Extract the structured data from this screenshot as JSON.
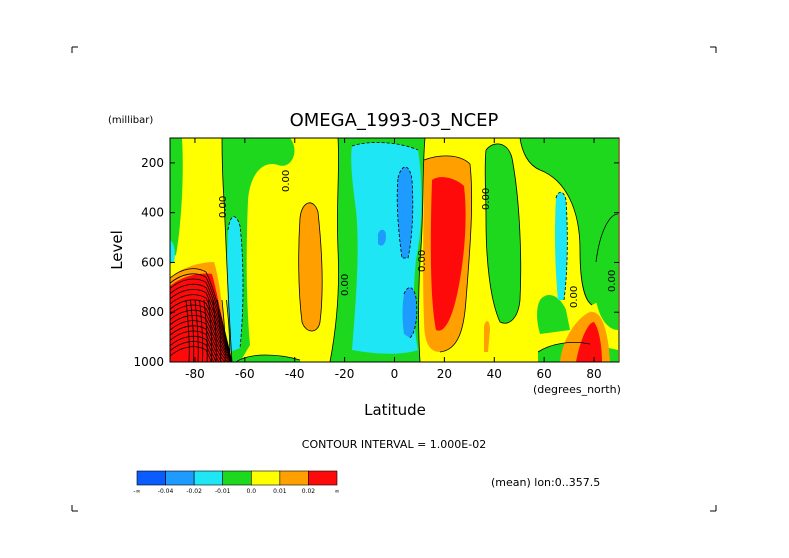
{
  "chart_data": {
    "type": "heatmap",
    "title": "OMEGA_1993-03_NCEP",
    "xlabel": "Latitude",
    "x_units": "(degrees_north)",
    "ylabel": "Level",
    "y_units": "(millibar)",
    "xlim": [
      -90,
      90
    ],
    "ylim": [
      1000,
      100
    ],
    "x_ticks": [
      -80,
      -60,
      -40,
      -20,
      0,
      20,
      40,
      60,
      80
    ],
    "x_tick_labels": [
      "-80",
      "-60",
      "-40",
      "-20",
      "0",
      "20",
      "40",
      "60",
      "80"
    ],
    "y_ticks": [
      200,
      400,
      600,
      800,
      1000
    ],
    "y_tick_labels": [
      "200",
      "400",
      "600",
      "800",
      "1000"
    ],
    "contour_interval_text": "CONTOUR INTERVAL = 1.000E-02",
    "footer_text": "(mean) lon:0..357.5",
    "colorbar": {
      "colors": [
        "#0a5cff",
        "#1e9bff",
        "#1ee6f5",
        "#1ed81e",
        "#ffff00",
        "#ffa000",
        "#ff0a0a"
      ],
      "labels": [
        "-∞",
        "-0.04",
        "-0.02",
        "-0.01",
        "0.0",
        "0.01",
        "0.02",
        "∞"
      ]
    },
    "contour_labels": [
      "0.00",
      "0.00",
      "0.00",
      "0.00",
      "0.00",
      "0.00",
      "0.00"
    ],
    "colors": {
      "green": "#1ed81e",
      "yellow": "#ffff00",
      "orange": "#ffa000",
      "red": "#ff0a0a",
      "cyan": "#1ee6f5",
      "blue": "#1e9bff"
    }
  }
}
